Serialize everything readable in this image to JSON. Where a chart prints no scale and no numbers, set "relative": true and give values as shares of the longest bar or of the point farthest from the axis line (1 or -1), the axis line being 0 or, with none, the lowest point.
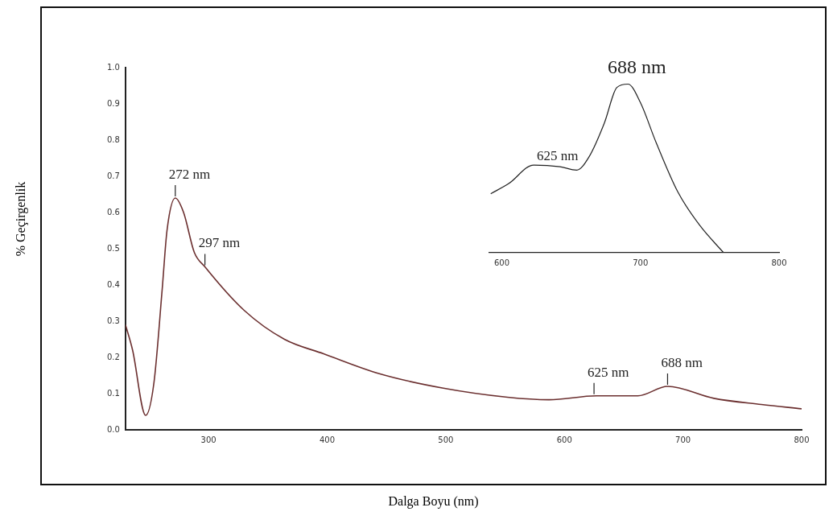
{
  "chart_data": [
    {
      "type": "line",
      "xlabel": "Dalga Boyu (nm)",
      "ylabel": "% Geçirgenlik",
      "xlim": [
        230,
        800
      ],
      "xticks": [
        300,
        400,
        500,
        600,
        700,
        800
      ],
      "ylim": [
        0,
        1
      ],
      "yticks": [
        {
          "value": 0,
          "label": "0.0"
        },
        {
          "value": 0.1,
          "label": "0.1"
        },
        {
          "value": 0.2,
          "label": "0.2"
        },
        {
          "value": 0.3,
          "label": "0.3"
        },
        {
          "value": 0.4,
          "label": "0.4"
        },
        {
          "value": 0.5,
          "label": "0.5"
        },
        {
          "value": 0.6,
          "label": "0.6"
        },
        {
          "value": 0.7,
          "label": "0.7"
        },
        {
          "value": 0.8,
          "label": "0.8"
        },
        {
          "value": 0.9,
          "label": "0.9"
        },
        {
          "value": 1,
          "label": "1.0"
        }
      ],
      "grid": false,
      "legend": false,
      "marker": "none",
      "line_style": "solid",
      "series": [
        {
          "color": "#6b2f2f",
          "x": [
            230,
            236,
            247,
            254,
            261,
            265,
            272,
            279,
            288,
            297,
            330,
            364,
            397,
            444,
            498,
            552,
            587,
            627,
            662,
            687,
            726,
            766,
            800
          ],
          "values": [
            0.29,
            0.22,
            0.04,
            0.13,
            0.39,
            0.55,
            0.64,
            0.6,
            0.49,
            0.45,
            0.33,
            0.25,
            0.21,
            0.155,
            0.115,
            0.09,
            0.083,
            0.094,
            0.094,
            0.12,
            0.087,
            0.07,
            0.058
          ]
        }
      ],
      "annotations": [
        {
          "text": "272 nm",
          "x": 272,
          "y": 0.64
        },
        {
          "text": "297 nm",
          "x": 297,
          "y": 0.45
        },
        {
          "text": "625 nm",
          "x": 625,
          "y": 0.094
        },
        {
          "text": "688 nm",
          "x": 687,
          "y": 0.12
        }
      ]
    },
    {
      "type": "line",
      "relative": true,
      "xlim": [
        591,
        800
      ],
      "xticks": [
        600,
        700,
        800
      ],
      "grid": false,
      "legend": false,
      "marker": "none",
      "line_style": "solid",
      "tick_labels": "x",
      "series": [
        {
          "color": "#222222",
          "x": [
            592,
            605,
            623,
            642,
            654,
            663,
            674,
            683,
            691,
            700,
            711,
            727,
            743,
            760
          ],
          "values": [
            0.35,
            0.41,
            0.52,
            0.51,
            0.49,
            0.57,
            0.77,
            0.98,
            1,
            0.89,
            0.66,
            0.36,
            0.16,
            0
          ]
        }
      ],
      "annotations": [
        {
          "text": "688 nm",
          "x": 688,
          "y": 1
        },
        {
          "text": "625 nm",
          "x": 625,
          "y": 0.52
        }
      ]
    }
  ]
}
